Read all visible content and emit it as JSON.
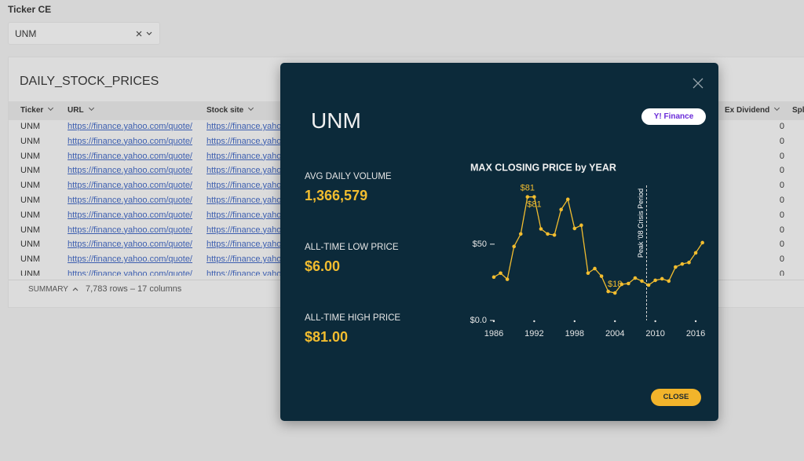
{
  "filter": {
    "label": "Ticker CE",
    "value": "UNM"
  },
  "table": {
    "title": "DAILY_STOCK_PRICES",
    "columns": [
      "Ticker",
      "URL",
      "Stock site",
      "Ex Dividend",
      "Spl"
    ],
    "rows": [
      [
        "UNM",
        "https://finance.yahoo.com/quote/",
        "https://finance.yaho",
        "0"
      ],
      [
        "UNM",
        "https://finance.yahoo.com/quote/",
        "https://finance.yaho",
        "0"
      ],
      [
        "UNM",
        "https://finance.yahoo.com/quote/",
        "https://finance.yaho",
        "0"
      ],
      [
        "UNM",
        "https://finance.yahoo.com/quote/",
        "https://finance.yaho",
        "0"
      ],
      [
        "UNM",
        "https://finance.yahoo.com/quote/",
        "https://finance.yaho",
        "0"
      ],
      [
        "UNM",
        "https://finance.yahoo.com/quote/",
        "https://finance.yaho",
        "0"
      ],
      [
        "UNM",
        "https://finance.yahoo.com/quote/",
        "https://finance.yaho",
        "0"
      ],
      [
        "UNM",
        "https://finance.yahoo.com/quote/",
        "https://finance.yaho",
        "0"
      ],
      [
        "UNM",
        "https://finance.yahoo.com/quote/",
        "https://finance.yaho",
        "0"
      ],
      [
        "UNM",
        "https://finance.yahoo.com/quote/",
        "https://finance.yaho",
        "0"
      ],
      [
        "UNM",
        "https://finance.yahoo.com/quote/",
        "https://finance.yaho",
        "0"
      ]
    ],
    "summary": {
      "label": "SUMMARY",
      "text": "7,783 rows – 17 columns"
    }
  },
  "modal": {
    "title": "UNM",
    "link_button": "Y! Finance",
    "stats": [
      {
        "label": "AVG DAILY VOLUME",
        "value": "1,366,579"
      },
      {
        "label": "ALL-TIME LOW PRICE",
        "value": "$6.00"
      },
      {
        "label": "ALL-TIME HIGH PRICE",
        "value": "$81.00"
      }
    ],
    "close_button": "CLOSE"
  },
  "chart_data": {
    "type": "line",
    "title": "MAX CLOSING PRICE by YEAR",
    "x": [
      1986,
      1987,
      1988,
      1989,
      1990,
      1991,
      1992,
      1993,
      1994,
      1995,
      1996,
      1997,
      1998,
      1999,
      2000,
      2001,
      2002,
      2003,
      2004,
      2005,
      2006,
      2007,
      2008,
      2009,
      2010,
      2011,
      2012,
      2013,
      2014,
      2015,
      2016,
      2017
    ],
    "series": [
      {
        "name": "Max closing price",
        "color": "#f2bd2f",
        "values": [
          28.4,
          31,
          27,
          48.5,
          56.7,
          81,
          81,
          60,
          56.7,
          56,
          72.7,
          79.4,
          60.3,
          62.4,
          31,
          34,
          29,
          19,
          18,
          23.7,
          24.2,
          27.8,
          25.8,
          23.2,
          26.3,
          27.3,
          25.8,
          35,
          37,
          38,
          44.3,
          51
        ],
        "value_labels": [
          null,
          null,
          null,
          null,
          null,
          "$81",
          "$81",
          null,
          null,
          null,
          null,
          null,
          null,
          null,
          null,
          null,
          null,
          null,
          "$18",
          null,
          null,
          null,
          null,
          null,
          null,
          null,
          null,
          null,
          null,
          null,
          null,
          null
        ]
      }
    ],
    "xlim": [
      1985,
      2018
    ],
    "xticks": [
      1986,
      1992,
      1998,
      2004,
      2010,
      2016
    ],
    "ylim": [
      0,
      86
    ],
    "yticks": [
      {
        "value": 0,
        "label": "$0.0"
      },
      {
        "value": 50,
        "label": "$50"
      }
    ],
    "annotations": [
      {
        "text": "Peak '08 Crisis Period",
        "x": 2008.7
      }
    ]
  }
}
